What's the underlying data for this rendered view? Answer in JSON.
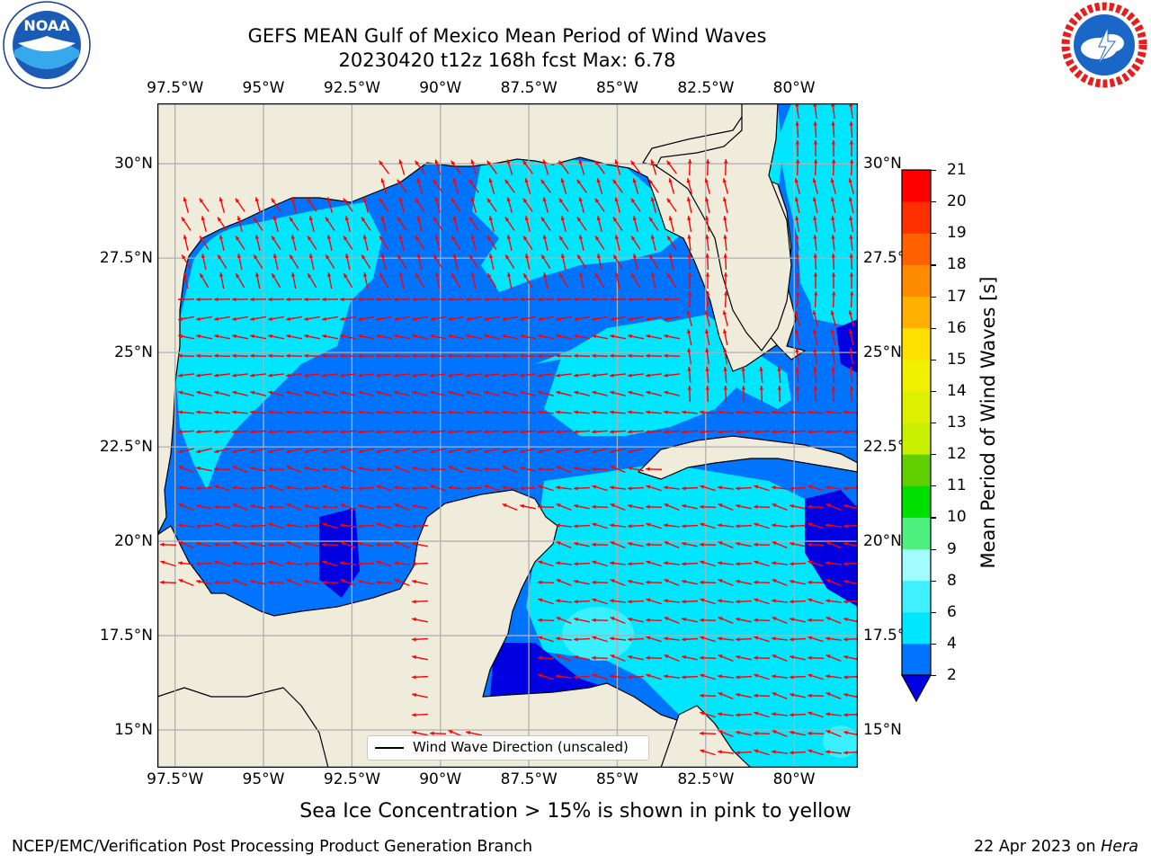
{
  "title": {
    "line1": "GEFS MEAN Gulf of Mexico Mean Period of Wind Waves",
    "line2": "20230420 t12z 168h fcst   Max: 6.78"
  },
  "map": {
    "lon_labels": [
      "97.5°W",
      "95°W",
      "92.5°W",
      "90°W",
      "87.5°W",
      "85°W",
      "82.5°W",
      "80°W"
    ],
    "lat_labels": [
      "30°N",
      "27.5°N",
      "25°N",
      "22.5°N",
      "20°N",
      "17.5°N",
      "15°N"
    ],
    "lon_range": [
      -98,
      -78.2
    ],
    "lat_range": [
      14,
      31.6
    ],
    "legend_label": "Wind Wave Direction (unscaled)",
    "vector_color": "#ff0000",
    "land_color": "#efecdc",
    "grid_color": "#b0b0b0"
  },
  "colorbar": {
    "label": "Mean Period of Wind Waves [s]",
    "ticks": [
      "21",
      "20",
      "19",
      "18",
      "17",
      "16",
      "15",
      "14",
      "13",
      "12",
      "11",
      "10",
      "9",
      "8",
      "6",
      "4",
      "2"
    ],
    "colors": [
      "#0000e0",
      "#0074ff",
      "#00e6ff",
      "#40f0ff",
      "#a0fcff",
      "#50f080",
      "#00e000",
      "#60d000",
      "#c8f000",
      "#dcf000",
      "#f0f000",
      "#ffe000",
      "#ffb000",
      "#ff8c00",
      "#ff6000",
      "#ff3000",
      "#ff0000"
    ]
  },
  "logos": {
    "noaa_text": "NOAA",
    "noaa_ring": "NATIONAL OCEANIC AND ATMOSPHERIC ADMINISTRATION · U.S. DEPARTMENT OF COMMERCE",
    "nws_ring": "NATIONAL WEATHER SERVICE"
  },
  "note": "Sea Ice Concentration > 15% is shown in pink to yellow",
  "footer": {
    "left": "NCEP/EMC/Verification Post Processing Product Generation Branch",
    "date": "22 Apr 2023 on",
    "machine": "Hera"
  }
}
